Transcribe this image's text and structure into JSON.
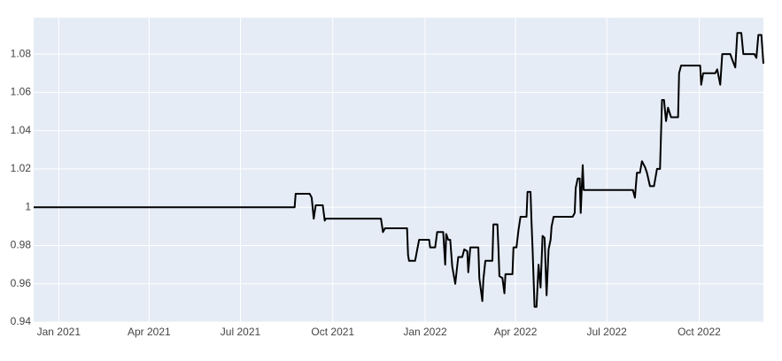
{
  "chart_data": {
    "type": "line",
    "color": "#000000",
    "grid": true,
    "background": "#e5ecf6",
    "x": [
      "2020-12-07",
      "2021-08-24",
      "2021-08-25",
      "2021-09-08",
      "2021-09-10",
      "2021-09-12",
      "2021-09-14",
      "2021-09-21",
      "2021-09-23",
      "2021-09-24",
      "2021-11-18",
      "2021-11-20",
      "2021-11-22",
      "2021-12-14",
      "2021-12-15",
      "2021-12-16",
      "2021-12-22",
      "2021-12-26",
      "2022-01-05",
      "2022-01-06",
      "2022-01-11",
      "2022-01-13",
      "2022-01-19",
      "2022-01-21",
      "2022-01-22",
      "2022-01-24",
      "2022-01-26",
      "2022-01-28",
      "2022-01-31",
      "2022-02-03",
      "2022-02-07",
      "2022-02-09",
      "2022-02-12",
      "2022-02-13",
      "2022-02-15",
      "2022-02-23",
      "2022-02-24",
      "2022-02-27",
      "2022-02-28",
      "2022-03-02",
      "2022-03-09",
      "2022-03-10",
      "2022-03-14",
      "2022-03-15",
      "2022-03-16",
      "2022-03-19",
      "2022-03-21",
      "2022-03-22",
      "2022-03-29",
      "2022-03-30",
      "2022-04-02",
      "2022-04-04",
      "2022-04-06",
      "2022-04-12",
      "2022-04-13",
      "2022-04-16",
      "2022-04-17",
      "2022-04-18",
      "2022-04-20",
      "2022-04-22",
      "2022-04-24",
      "2022-04-26",
      "2022-04-28",
      "2022-04-30",
      "2022-05-02",
      "2022-05-04",
      "2022-05-06",
      "2022-05-07",
      "2022-05-09",
      "2022-05-28",
      "2022-05-30",
      "2022-05-31",
      "2022-06-02",
      "2022-06-04",
      "2022-06-05",
      "2022-06-07",
      "2022-06-08",
      "2022-07-27",
      "2022-07-29",
      "2022-07-31",
      "2022-08-03",
      "2022-08-05",
      "2022-08-08",
      "2022-08-10",
      "2022-08-13",
      "2022-08-17",
      "2022-08-20",
      "2022-08-23",
      "2022-08-25",
      "2022-08-27",
      "2022-08-29",
      "2022-08-31",
      "2022-09-03",
      "2022-09-10",
      "2022-09-11",
      "2022-09-13",
      "2022-10-02",
      "2022-10-03",
      "2022-10-05",
      "2022-10-17",
      "2022-10-19",
      "2022-10-22",
      "2022-10-24",
      "2022-11-01",
      "2022-11-03",
      "2022-11-06",
      "2022-11-08",
      "2022-11-12",
      "2022-11-14",
      "2022-11-25",
      "2022-11-27",
      "2022-11-29",
      "2022-12-02",
      "2022-12-04"
    ],
    "values": [
      1.0,
      1.0,
      1.007,
      1.007,
      1.005,
      0.994,
      1.001,
      1.001,
      0.993,
      0.994,
      0.994,
      0.987,
      0.989,
      0.989,
      0.975,
      0.972,
      0.972,
      0.983,
      0.983,
      0.979,
      0.979,
      0.987,
      0.987,
      0.97,
      0.986,
      0.983,
      0.983,
      0.969,
      0.96,
      0.974,
      0.974,
      0.978,
      0.977,
      0.966,
      0.979,
      0.979,
      0.963,
      0.951,
      0.962,
      0.972,
      0.972,
      0.991,
      0.991,
      0.979,
      0.964,
      0.963,
      0.955,
      0.965,
      0.965,
      0.979,
      0.979,
      0.988,
      0.995,
      0.995,
      1.008,
      1.008,
      0.992,
      0.979,
      0.948,
      0.948,
      0.97,
      0.958,
      0.985,
      0.984,
      0.954,
      0.978,
      0.983,
      0.99,
      0.995,
      0.995,
      0.997,
      1.01,
      1.015,
      1.015,
      0.997,
      1.022,
      1.009,
      1.009,
      1.005,
      1.018,
      1.018,
      1.024,
      1.021,
      1.018,
      1.011,
      1.011,
      1.02,
      1.02,
      1.056,
      1.056,
      1.045,
      1.052,
      1.047,
      1.047,
      1.07,
      1.074,
      1.074,
      1.064,
      1.07,
      1.07,
      1.072,
      1.064,
      1.08,
      1.08,
      1.077,
      1.073,
      1.091,
      1.091,
      1.08,
      1.08,
      1.078,
      1.09,
      1.09,
      1.075
    ],
    "xlim": [
      "2020-12-07",
      "2022-12-04"
    ],
    "xticks": [
      {
        "value": "2021-01-01",
        "label": "Jan 2021"
      },
      {
        "value": "2021-04-01",
        "label": "Apr 2021"
      },
      {
        "value": "2021-07-01",
        "label": "Jul 2021"
      },
      {
        "value": "2021-10-01",
        "label": "Oct 2021"
      },
      {
        "value": "2022-01-01",
        "label": "Jan 2022"
      },
      {
        "value": "2022-04-01",
        "label": "Apr 2022"
      },
      {
        "value": "2022-07-01",
        "label": "Jul 2022"
      },
      {
        "value": "2022-10-01",
        "label": "Oct 2022"
      }
    ],
    "ylim": [
      0.94,
      1.099
    ],
    "yticks": [
      0.94,
      0.96,
      0.98,
      1,
      1.02,
      1.04,
      1.06,
      1.08
    ]
  }
}
